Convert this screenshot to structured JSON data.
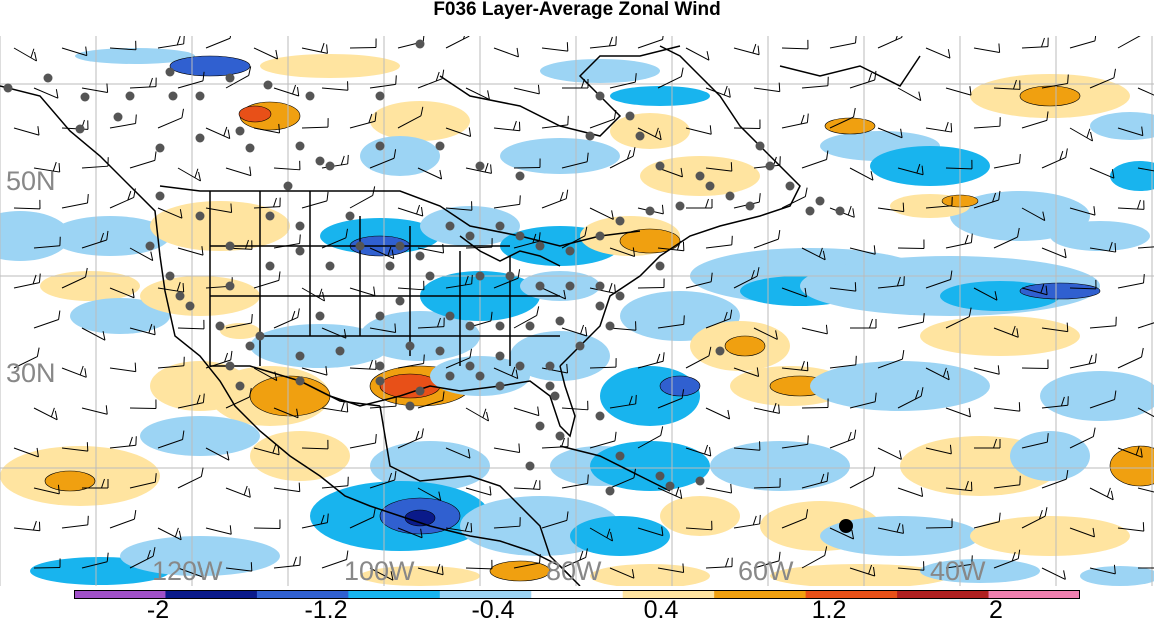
{
  "title": "F036 Layer-Average Zonal Wind",
  "lat_labels": [
    "50N",
    "30N"
  ],
  "lon_labels": [
    "120W",
    "100W",
    "80W",
    "60W",
    "40W"
  ],
  "colorbar": {
    "colors": [
      "#a050c8",
      "#0a1a8a",
      "#3060d0",
      "#18b4ee",
      "#9cd4f4",
      "#ffffff",
      "#ffe4a0",
      "#f0a010",
      "#e85018",
      "#b02020",
      "#f080b0"
    ],
    "labels": [
      "-2",
      "-1.2",
      "-0.4",
      "0.4",
      "1.2",
      "2"
    ]
  }
}
